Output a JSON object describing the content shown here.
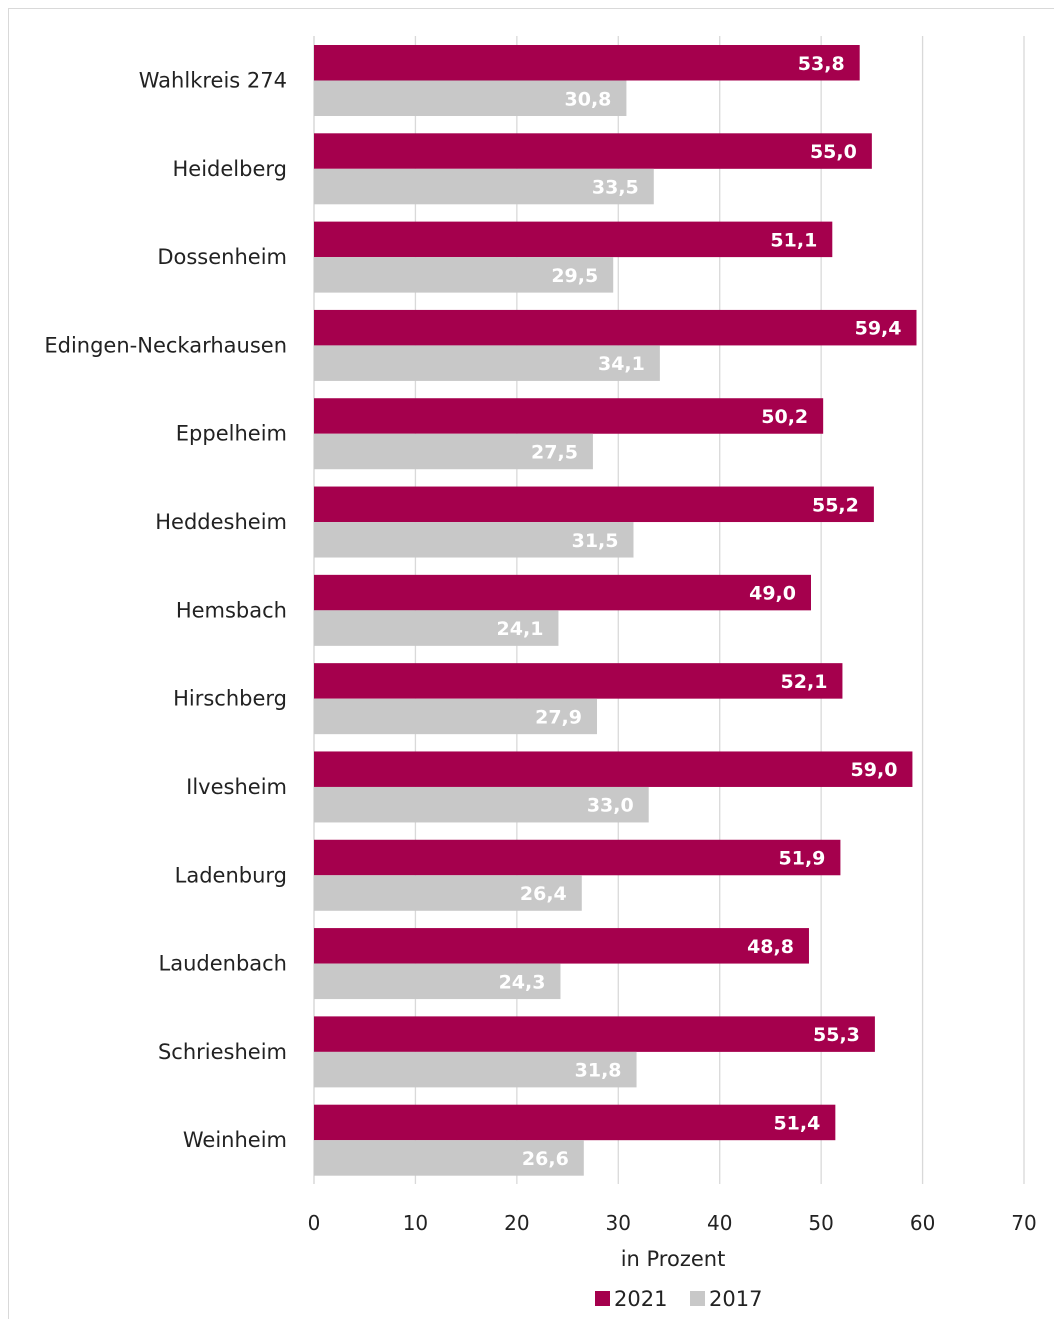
{
  "chart_data": {
    "type": "bar",
    "orientation": "horizontal",
    "categories": [
      "Wahlkreis 274",
      "Heidelberg",
      "Dossenheim",
      "Edingen-Neckarhausen",
      "Eppelheim",
      "Heddesheim",
      "Hemsbach",
      "Hirschberg",
      "Ilvesheim",
      "Ladenburg",
      "Laudenbach",
      "Schriesheim",
      "Weinheim"
    ],
    "series": [
      {
        "name": "2021",
        "color": "#a5004d",
        "values": [
          53.8,
          55.0,
          51.1,
          59.4,
          50.2,
          55.2,
          49.0,
          52.1,
          59.0,
          51.9,
          48.8,
          55.3,
          51.4
        ],
        "labels": [
          "53,8",
          "55,0",
          "51,1",
          "59,4",
          "50,2",
          "55,2",
          "49,0",
          "52,1",
          "59,0",
          "51,9",
          "48,8",
          "55,3",
          "51,4"
        ]
      },
      {
        "name": "2017",
        "color": "#c8c8c8",
        "values": [
          30.8,
          33.5,
          29.5,
          34.1,
          27.5,
          31.5,
          24.1,
          27.9,
          33.0,
          26.4,
          24.3,
          31.8,
          26.6
        ],
        "labels": [
          "30,8",
          "33,5",
          "29,5",
          "34,1",
          "27,5",
          "31,5",
          "24,1",
          "27,9",
          "33,0",
          "26,4",
          "24,3",
          "31,8",
          "26,6"
        ]
      }
    ],
    "xlabel": "in Prozent",
    "xlim": [
      0,
      70
    ],
    "xticks": [
      "0",
      "10",
      "20",
      "30",
      "40",
      "50",
      "60",
      "70"
    ],
    "grid": true,
    "legend": "bottom"
  }
}
